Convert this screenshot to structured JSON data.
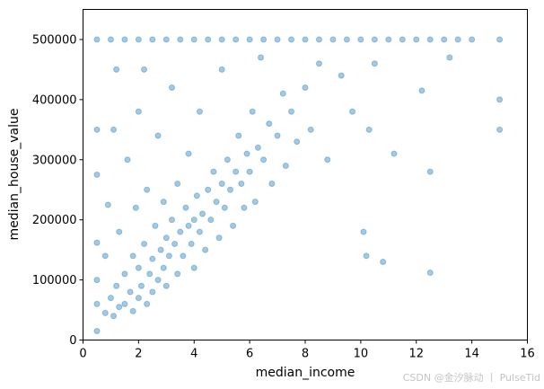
{
  "chart_data": {
    "type": "scatter",
    "title": "",
    "xlabel": "median_income",
    "ylabel": "median_house_value",
    "xlim": [
      0,
      16
    ],
    "ylim": [
      0,
      550000
    ],
    "xticks": [
      0,
      2,
      4,
      6,
      8,
      10,
      12,
      14,
      16
    ],
    "yticks": [
      0,
      100000,
      200000,
      300000,
      400000,
      500000
    ],
    "xtick_labels": [
      "0",
      "2",
      "4",
      "6",
      "8",
      "10",
      "12",
      "14",
      "16"
    ],
    "ytick_labels": [
      "0",
      "100000",
      "200000",
      "300000",
      "400000",
      "500000"
    ],
    "grid": false,
    "point_color": "#1f77b4",
    "point_alpha": 0.1,
    "series": [
      {
        "points": [
          [
            0.5,
            15000
          ],
          [
            0.5,
            60000
          ],
          [
            0.5,
            100000
          ],
          [
            0.5,
            162000
          ],
          [
            0.5,
            275000
          ],
          [
            0.5,
            350000
          ],
          [
            0.5,
            500000
          ],
          [
            0.8,
            45000
          ],
          [
            0.8,
            140000
          ],
          [
            0.9,
            225000
          ],
          [
            1.0,
            70000
          ],
          [
            1.0,
            500000
          ],
          [
            1.1,
            40000
          ],
          [
            1.1,
            350000
          ],
          [
            1.2,
            90000
          ],
          [
            1.2,
            450000
          ],
          [
            1.3,
            55000
          ],
          [
            1.3,
            180000
          ],
          [
            1.5,
            60000
          ],
          [
            1.5,
            110000
          ],
          [
            1.5,
            500000
          ],
          [
            1.6,
            300000
          ],
          [
            1.7,
            80000
          ],
          [
            1.8,
            48000
          ],
          [
            1.8,
            140000
          ],
          [
            1.9,
            220000
          ],
          [
            2.0,
            70000
          ],
          [
            2.0,
            120000
          ],
          [
            2.0,
            380000
          ],
          [
            2.0,
            500000
          ],
          [
            2.1,
            90000
          ],
          [
            2.2,
            160000
          ],
          [
            2.2,
            450000
          ],
          [
            2.3,
            60000
          ],
          [
            2.3,
            250000
          ],
          [
            2.4,
            110000
          ],
          [
            2.5,
            80000
          ],
          [
            2.5,
            135000
          ],
          [
            2.5,
            500000
          ],
          [
            2.6,
            190000
          ],
          [
            2.7,
            100000
          ],
          [
            2.7,
            340000
          ],
          [
            2.8,
            150000
          ],
          [
            2.9,
            120000
          ],
          [
            2.9,
            230000
          ],
          [
            3.0,
            90000
          ],
          [
            3.0,
            170000
          ],
          [
            3.0,
            500000
          ],
          [
            3.1,
            140000
          ],
          [
            3.2,
            200000
          ],
          [
            3.2,
            420000
          ],
          [
            3.3,
            160000
          ],
          [
            3.4,
            110000
          ],
          [
            3.4,
            260000
          ],
          [
            3.5,
            180000
          ],
          [
            3.5,
            500000
          ],
          [
            3.6,
            140000
          ],
          [
            3.7,
            220000
          ],
          [
            3.8,
            190000
          ],
          [
            3.8,
            310000
          ],
          [
            3.9,
            160000
          ],
          [
            4.0,
            200000
          ],
          [
            4.0,
            120000
          ],
          [
            4.0,
            500000
          ],
          [
            4.1,
            240000
          ],
          [
            4.2,
            180000
          ],
          [
            4.2,
            380000
          ],
          [
            4.3,
            210000
          ],
          [
            4.4,
            150000
          ],
          [
            4.5,
            250000
          ],
          [
            4.5,
            500000
          ],
          [
            4.6,
            200000
          ],
          [
            4.7,
            280000
          ],
          [
            4.8,
            230000
          ],
          [
            4.9,
            170000
          ],
          [
            5.0,
            260000
          ],
          [
            5.0,
            450000
          ],
          [
            5.0,
            500000
          ],
          [
            5.1,
            220000
          ],
          [
            5.2,
            300000
          ],
          [
            5.3,
            250000
          ],
          [
            5.4,
            190000
          ],
          [
            5.5,
            280000
          ],
          [
            5.5,
            500000
          ],
          [
            5.6,
            340000
          ],
          [
            5.7,
            260000
          ],
          [
            5.8,
            220000
          ],
          [
            5.9,
            310000
          ],
          [
            6.0,
            280000
          ],
          [
            6.0,
            500000
          ],
          [
            6.1,
            380000
          ],
          [
            6.2,
            230000
          ],
          [
            6.3,
            320000
          ],
          [
            6.4,
            470000
          ],
          [
            6.5,
            300000
          ],
          [
            6.5,
            500000
          ],
          [
            6.7,
            360000
          ],
          [
            6.8,
            260000
          ],
          [
            7.0,
            340000
          ],
          [
            7.0,
            500000
          ],
          [
            7.2,
            410000
          ],
          [
            7.3,
            290000
          ],
          [
            7.5,
            380000
          ],
          [
            7.5,
            500000
          ],
          [
            7.7,
            330000
          ],
          [
            8.0,
            420000
          ],
          [
            8.0,
            500000
          ],
          [
            8.2,
            350000
          ],
          [
            8.5,
            460000
          ],
          [
            8.5,
            500000
          ],
          [
            8.8,
            300000
          ],
          [
            9.0,
            500000
          ],
          [
            9.3,
            440000
          ],
          [
            9.5,
            500000
          ],
          [
            9.7,
            380000
          ],
          [
            10.0,
            500000
          ],
          [
            10.1,
            180000
          ],
          [
            10.2,
            140000
          ],
          [
            10.3,
            350000
          ],
          [
            10.5,
            500000
          ],
          [
            10.5,
            460000
          ],
          [
            10.8,
            130000
          ],
          [
            11.0,
            500000
          ],
          [
            11.2,
            310000
          ],
          [
            11.5,
            500000
          ],
          [
            12.0,
            500000
          ],
          [
            12.2,
            415000
          ],
          [
            12.5,
            500000
          ],
          [
            12.5,
            280000
          ],
          [
            12.5,
            112000
          ],
          [
            13.0,
            500000
          ],
          [
            13.2,
            470000
          ],
          [
            13.5,
            500000
          ],
          [
            14.0,
            500000
          ],
          [
            15.0,
            500000
          ],
          [
            15.0,
            400000
          ],
          [
            15.0,
            350000
          ]
        ]
      }
    ]
  },
  "watermark": "CSDN @金汐脉动 丨 PulseTid"
}
